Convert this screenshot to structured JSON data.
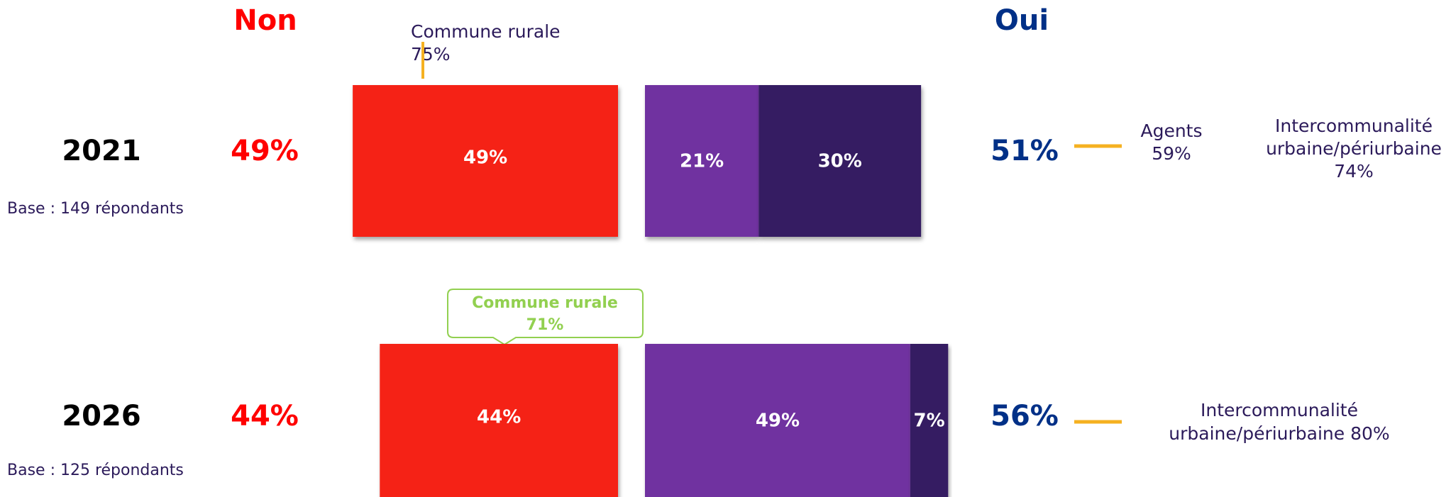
{
  "chart_data": {
    "type": "diverging-bar",
    "left_header": "Non",
    "right_header": "Oui",
    "categories": [
      "2021",
      "2026"
    ],
    "bases": [
      "Base : 149 répondants",
      "Base : 125 répondants"
    ],
    "series": [
      {
        "color": "#f52314",
        "values": [
          49,
          44
        ],
        "value_labels": [
          "49%",
          "44%"
        ]
      },
      {
        "color": "#7030a0",
        "values": [
          21,
          49
        ],
        "value_labels": [
          "21%",
          "49%"
        ]
      },
      {
        "color": "#361a62",
        "values": [
          30,
          7
        ],
        "value_labels": [
          "30%",
          "7%"
        ]
      }
    ],
    "oui_totals": [
      51,
      56
    ],
    "oui_total_labels": [
      "51%",
      "56%"
    ],
    "annotations": [
      {
        "lines": [
          "Commune rurale",
          "75%"
        ]
      },
      {
        "lines": [
          "Agents",
          "59%"
        ]
      },
      {
        "lines": [
          "Intercommunalité",
          "urbaine/périurbaine",
          "74%"
        ]
      },
      {
        "lines": [
          "Commune rurale",
          "71%"
        ]
      },
      {
        "lines": [
          "Intercommunalité",
          "urbaine/périurbaine 80%"
        ]
      }
    ]
  }
}
